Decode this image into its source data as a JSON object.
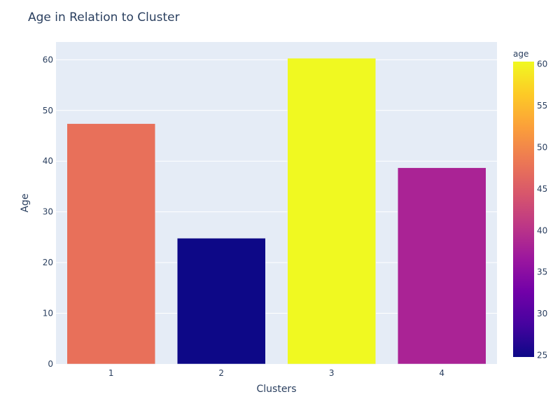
{
  "chart_data": {
    "type": "bar",
    "title": "Age in Relation to Cluster",
    "xlabel": "Clusters",
    "ylabel": "Age",
    "categories": [
      "1",
      "2",
      "3",
      "4"
    ],
    "values": [
      47.4,
      24.8,
      60.3,
      38.7
    ],
    "ylim": [
      0,
      63.5
    ],
    "yticks": [
      0,
      10,
      20,
      30,
      40,
      50,
      60
    ],
    "grid": true,
    "colorbar": {
      "title": "age",
      "range": [
        24.8,
        60.3
      ],
      "ticks": [
        25,
        30,
        35,
        40,
        45,
        50,
        55,
        60
      ],
      "colorscale": [
        "#0d0887",
        "#46039f",
        "#7201a8",
        "#9c179e",
        "#bd3786",
        "#d8576b",
        "#ed7953",
        "#fb9f3a",
        "#fdca26",
        "#f0f921"
      ]
    },
    "bar_colors": [
      "#e8705a",
      "#0d0887",
      "#f0f921",
      "#aa2395"
    ],
    "background_color": "#e5ecf6"
  }
}
